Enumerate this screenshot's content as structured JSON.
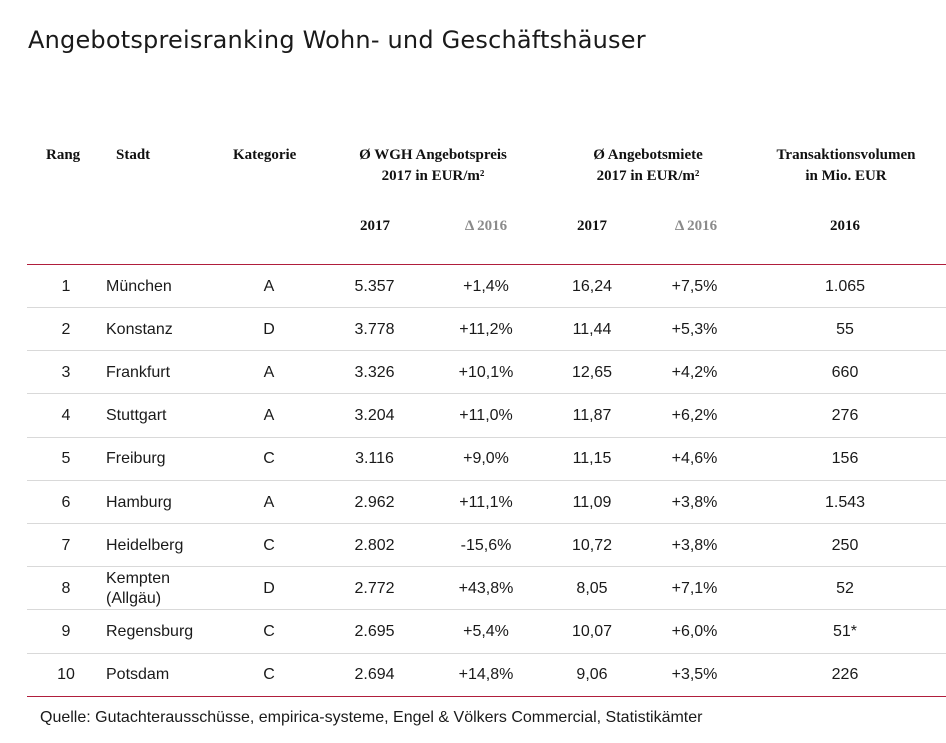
{
  "title": "Angebotspreisranking Wohn- und Geschäftshäuser",
  "headers": {
    "rang": "Rang",
    "stadt": "Stadt",
    "kategorie": "Kategorie",
    "preis_line1": "Ø WGH Angebotspreis",
    "preis_line2": "2017 in EUR/m²",
    "miete_line1": "Ø Angebotsmiete",
    "miete_line2": "2017 in EUR/m²",
    "volumen_line1": "Transaktionsvolumen",
    "volumen_line2": "in Mio. EUR"
  },
  "subheaders": {
    "preis_year": "2017",
    "preis_delta": "Δ 2016",
    "miete_year": "2017",
    "miete_delta": "Δ 2016",
    "volumen_year": "2016"
  },
  "rows": [
    {
      "rang": "1",
      "stadt": "München",
      "stadt2": "",
      "kategorie": "A",
      "preis": "5.357",
      "preis_delta": "+1,4%",
      "miete": "16,24",
      "miete_delta": "+7,5%",
      "volumen": "1.065"
    },
    {
      "rang": "2",
      "stadt": "Konstanz",
      "stadt2": "",
      "kategorie": "D",
      "preis": "3.778",
      "preis_delta": "+11,2%",
      "miete": "11,44",
      "miete_delta": "+5,3%",
      "volumen": "55"
    },
    {
      "rang": "3",
      "stadt": "Frankfurt",
      "stadt2": "",
      "kategorie": "A",
      "preis": "3.326",
      "preis_delta": "+10,1%",
      "miete": "12,65",
      "miete_delta": "+4,2%",
      "volumen": "660"
    },
    {
      "rang": "4",
      "stadt": "Stuttgart",
      "stadt2": "",
      "kategorie": "A",
      "preis": "3.204",
      "preis_delta": "+11,0%",
      "miete": "11,87",
      "miete_delta": "+6,2%",
      "volumen": "276"
    },
    {
      "rang": "5",
      "stadt": "Freiburg",
      "stadt2": "",
      "kategorie": "C",
      "preis": "3.116",
      "preis_delta": "+9,0%",
      "miete": "11,15",
      "miete_delta": "+4,6%",
      "volumen": "156"
    },
    {
      "rang": "6",
      "stadt": "Hamburg",
      "stadt2": "",
      "kategorie": "A",
      "preis": "2.962",
      "preis_delta": "+11,1%",
      "miete": "11,09",
      "miete_delta": "+3,8%",
      "volumen": "1.543"
    },
    {
      "rang": "7",
      "stadt": "Heidelberg",
      "stadt2": "",
      "kategorie": "C",
      "preis": "2.802",
      "preis_delta": "-15,6%",
      "miete": "10,72",
      "miete_delta": "+3,8%",
      "volumen": "250"
    },
    {
      "rang": "8",
      "stadt": "Kempten",
      "stadt2": "(Allgäu)",
      "kategorie": "D",
      "preis": "2.772",
      "preis_delta": "+43,8%",
      "miete": "8,05",
      "miete_delta": "+7,1%",
      "volumen": "52"
    },
    {
      "rang": "9",
      "stadt": "Regensburg",
      "stadt2": "",
      "kategorie": "C",
      "preis": "2.695",
      "preis_delta": "+5,4%",
      "miete": "10,07",
      "miete_delta": "+6,0%",
      "volumen": "51*"
    },
    {
      "rang": "10",
      "stadt": "Potsdam",
      "stadt2": "",
      "kategorie": "C",
      "preis": "2.694",
      "preis_delta": "+14,8%",
      "miete": "9,06",
      "miete_delta": "+3,5%",
      "volumen": "226"
    }
  ],
  "source": "Quelle: Gutachterausschüsse, empirica-systeme, Engel & Völkers Commercial, Statistikämter",
  "colors": {
    "rule": "#b01e3c",
    "row_divider": "#d9d9d9",
    "delta_header": "#8a8a8a"
  }
}
